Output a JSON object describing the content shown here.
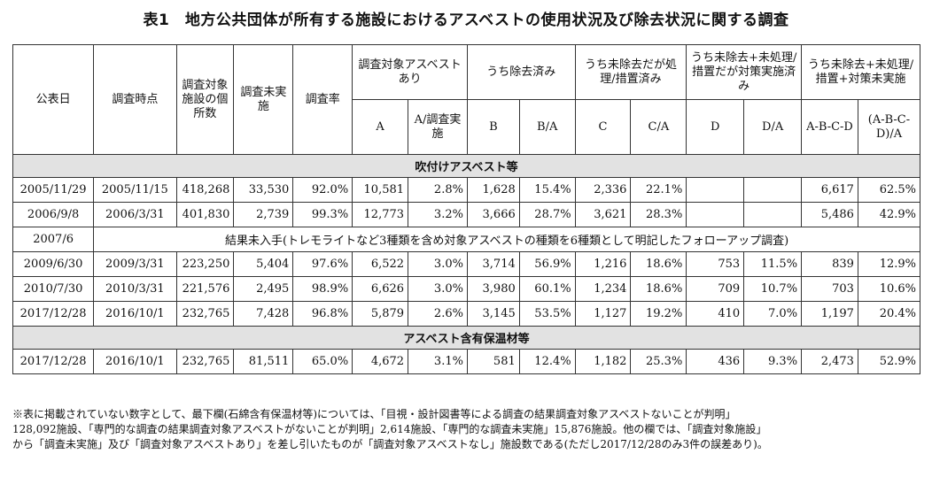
{
  "title": "表1　地方公共団体が所有する施設におけるアスベストの使用状況及び除去状況に関する調査",
  "headers": {
    "pub_date": "公表日",
    "survey_date": "調査時点",
    "target_facilities": "調査対象施設の個所数",
    "not_surveyed": "調査未実施",
    "survey_rate": "調査率",
    "group_asbestos": "調査対象アスベストあり",
    "group_removed": "うち除去済み",
    "group_unremoved_treated": "うち未除去だが処理/措置済み",
    "group_unremoved_countermeasure": "うち未除去+未処理/措置だが対策実施済み",
    "group_unremoved_none": "うち未除去+未処理/措置+対策未実施",
    "col_A": "A",
    "col_A_rate": "A/調査実施",
    "col_B": "B",
    "col_BA": "B/A",
    "col_C": "C",
    "col_CA": "C/A",
    "col_D": "D",
    "col_DA": "D/A",
    "col_ABCD": "A-B-C-D",
    "col_ABCD_rate": "(A-B-C-D)/A"
  },
  "section1": "吹付けアスベスト等",
  "rows1": [
    {
      "pub": "2005/11/29",
      "survey": "2005/11/15",
      "fac": "418,268",
      "ns": "33,530",
      "rate": "92.0%",
      "a": "10,581",
      "ar": "2.8%",
      "b": "1,628",
      "ba": "15.4%",
      "c": "2,336",
      "ca": "22.1%",
      "d": "",
      "da": "",
      "abcd": "6,617",
      "abcdr": "62.5%"
    },
    {
      "pub": "2006/9/8",
      "survey": "2006/3/31",
      "fac": "401,830",
      "ns": "2,739",
      "rate": "99.3%",
      "a": "12,773",
      "ar": "3.2%",
      "b": "3,666",
      "ba": "28.7%",
      "c": "3,621",
      "ca": "28.3%",
      "d": "",
      "da": "",
      "abcd": "5,486",
      "abcdr": "42.9%"
    }
  ],
  "note_row": {
    "pub": "2007/6",
    "text": "結果未入手(トレモライトなど3種類を含め対象アスベストの種類を6種類として明記したフォローアップ調査)"
  },
  "rows2": [
    {
      "pub": "2009/6/30",
      "survey": "2009/3/31",
      "fac": "223,250",
      "ns": "5,404",
      "rate": "97.6%",
      "a": "6,522",
      "ar": "3.0%",
      "b": "3,714",
      "ba": "56.9%",
      "c": "1,216",
      "ca": "18.6%",
      "d": "753",
      "da": "11.5%",
      "abcd": "839",
      "abcdr": "12.9%"
    },
    {
      "pub": "2010/7/30",
      "survey": "2010/3/31",
      "fac": "221,576",
      "ns": "2,495",
      "rate": "98.9%",
      "a": "6,626",
      "ar": "3.0%",
      "b": "3,980",
      "ba": "60.1%",
      "c": "1,234",
      "ca": "18.6%",
      "d": "709",
      "da": "10.7%",
      "abcd": "703",
      "abcdr": "10.6%"
    },
    {
      "pub": "2017/12/28",
      "survey": "2016/10/1",
      "fac": "232,765",
      "ns": "7,428",
      "rate": "96.8%",
      "a": "5,879",
      "ar": "2.6%",
      "b": "3,145",
      "ba": "53.5%",
      "c": "1,127",
      "ca": "19.2%",
      "d": "410",
      "da": "7.0%",
      "abcd": "1,197",
      "abcdr": "20.4%"
    }
  ],
  "section2": "アスベスト含有保温材等",
  "rows3": [
    {
      "pub": "2017/12/28",
      "survey": "2016/10/1",
      "fac": "232,765",
      "ns": "81,511",
      "rate": "65.0%",
      "a": "4,672",
      "ar": "3.1%",
      "b": "581",
      "ba": "12.4%",
      "c": "1,182",
      "ca": "25.3%",
      "d": "436",
      "da": "9.3%",
      "abcd": "2,473",
      "abcdr": "52.9%"
    }
  ],
  "footnote": [
    "※表に掲載されていない数字として、最下欄(石綿含有保温材等)については、「目視・設計図書等による調査の結果調査対象アスベストないことが判明」",
    "128,092施設、「専門的な調査の結果調査対象アスベストがないことが判明」2,614施設、「専門的な調査未実施」15,876施設。他の欄では、「調査対象施設」",
    "から「調査未実施」及び「調査対象アスベストあり」を差し引いたものが「調査対象アスベストなし」施設数である(ただし2017/12/28のみ3件の誤差あり)。"
  ]
}
